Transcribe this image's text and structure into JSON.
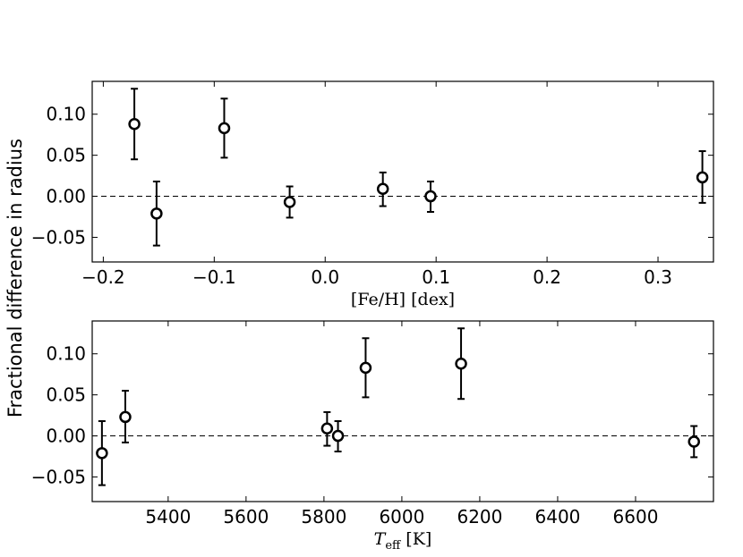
{
  "figure": {
    "ylabel": "Fractional difference in radius"
  },
  "chart_data": [
    {
      "type": "scatter",
      "xlabel": "[Fe/H]  [dex]",
      "xlim": [
        -0.21,
        0.35
      ],
      "ylim": [
        -0.08,
        0.14
      ],
      "xticks": [
        -0.2,
        -0.1,
        0.0,
        0.1,
        0.2,
        0.3
      ],
      "xtick_labels": [
        "−0.2",
        "−0.1",
        "0.0",
        "0.1",
        "0.2",
        "0.3"
      ],
      "yticks": [
        -0.05,
        0.0,
        0.05,
        0.1
      ],
      "ytick_labels": [
        "−0.05",
        "0.00",
        "0.05",
        "0.10"
      ],
      "reference_line": 0.0,
      "grid": false,
      "points": [
        {
          "x": -0.172,
          "y": 0.088,
          "ylow": 0.045,
          "yhigh": 0.131
        },
        {
          "x": -0.152,
          "y": -0.021,
          "ylow": -0.06,
          "yhigh": 0.018
        },
        {
          "x": -0.091,
          "y": 0.083,
          "ylow": 0.047,
          "yhigh": 0.119
        },
        {
          "x": -0.032,
          "y": -0.007,
          "ylow": -0.026,
          "yhigh": 0.012
        },
        {
          "x": 0.052,
          "y": 0.009,
          "ylow": -0.012,
          "yhigh": 0.029
        },
        {
          "x": 0.095,
          "y": 0.0,
          "ylow": -0.019,
          "yhigh": 0.018
        },
        {
          "x": 0.34,
          "y": 0.023,
          "ylow": -0.008,
          "yhigh": 0.055
        }
      ]
    },
    {
      "type": "scatter",
      "xlabel_main": "T",
      "xlabel_sub": "eff",
      "xlabel_unit": "[K]",
      "xlim": [
        5205,
        6800
      ],
      "ylim": [
        -0.08,
        0.14
      ],
      "xticks": [
        5400,
        5600,
        5800,
        6000,
        6200,
        6400,
        6600
      ],
      "xtick_labels": [
        "5400",
        "5600",
        "5800",
        "6000",
        "6200",
        "6400",
        "6600"
      ],
      "yticks": [
        -0.05,
        0.0,
        0.05,
        0.1
      ],
      "ytick_labels": [
        "−0.05",
        "0.00",
        "0.05",
        "0.10"
      ],
      "reference_line": 0.0,
      "grid": false,
      "points": [
        {
          "x": 5230,
          "y": -0.021,
          "ylow": -0.06,
          "yhigh": 0.018
        },
        {
          "x": 5290,
          "y": 0.023,
          "ylow": -0.008,
          "yhigh": 0.055
        },
        {
          "x": 5808,
          "y": 0.009,
          "ylow": -0.012,
          "yhigh": 0.029
        },
        {
          "x": 5836,
          "y": 0.0,
          "ylow": -0.019,
          "yhigh": 0.018
        },
        {
          "x": 5907,
          "y": 0.083,
          "ylow": 0.047,
          "yhigh": 0.119
        },
        {
          "x": 6152,
          "y": 0.088,
          "ylow": 0.045,
          "yhigh": 0.131
        },
        {
          "x": 6750,
          "y": -0.007,
          "ylow": -0.026,
          "yhigh": 0.012
        }
      ]
    }
  ]
}
